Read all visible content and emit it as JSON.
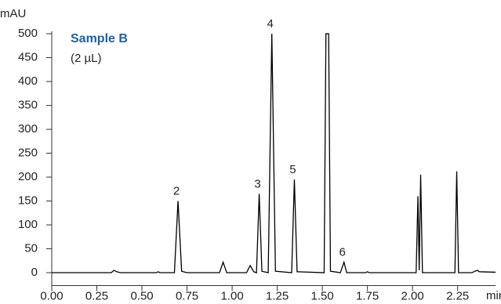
{
  "chart_data": {
    "type": "line",
    "title": "Sample B",
    "subtitle": "(2 µL)",
    "x_label": "min",
    "y_label": "mAU",
    "x": [
      0,
      0.33,
      0.345,
      0.36,
      0.38,
      0.58,
      0.59,
      0.6,
      0.68,
      0.7,
      0.72,
      0.75,
      0.93,
      0.95,
      0.97,
      1.08,
      1.1,
      1.12,
      1.135,
      1.15,
      1.165,
      1.2,
      1.22,
      1.24,
      1.33,
      1.345,
      1.36,
      1.51,
      1.52,
      1.535,
      1.545,
      1.6,
      1.62,
      1.635,
      1.74,
      1.75,
      1.76,
      2.02,
      2.03,
      2.037,
      2.045,
      2.055,
      2.235,
      2.245,
      2.255,
      2.33,
      2.345,
      2.36,
      2.37,
      2.46
    ],
    "values": [
      0,
      0,
      5,
      2,
      0,
      0,
      2,
      0,
      0,
      150,
      3,
      0,
      0,
      22,
      0,
      0,
      15,
      2,
      0,
      165,
      3,
      0,
      500,
      3,
      0,
      195,
      2,
      0,
      500,
      500,
      3,
      0,
      22,
      0,
      0,
      2,
      0,
      0,
      160,
      5,
      205,
      0,
      0,
      212,
      0,
      0,
      3,
      5,
      2,
      1
    ],
    "color": "#000000",
    "annotations": [
      {
        "text": "2",
        "x": 0.7,
        "y": 150
      },
      {
        "text": "3",
        "x": 1.15,
        "y": 165
      },
      {
        "text": "4",
        "x": 1.22,
        "y": 500
      },
      {
        "text": "5",
        "x": 1.345,
        "y": 195
      },
      {
        "text": "6",
        "x": 1.62,
        "y": 22
      }
    ],
    "xlim": [
      0,
      2.46
    ],
    "ylim": [
      -27,
      505
    ],
    "xticks": [
      {
        "value": 0,
        "label": "0.00"
      },
      {
        "value": 0.25,
        "label": "0.25"
      },
      {
        "value": 0.5,
        "label": "0.50"
      },
      {
        "value": 0.75,
        "label": "0.75"
      },
      {
        "value": 1,
        "label": "1.00"
      },
      {
        "value": 1.25,
        "label": "1.25"
      },
      {
        "value": 1.5,
        "label": "1.50"
      },
      {
        "value": 1.75,
        "label": "1.75"
      },
      {
        "value": 2,
        "label": "2.00"
      },
      {
        "value": 2.25,
        "label": "2.25"
      }
    ],
    "yticks": [
      0,
      50,
      100,
      150,
      200,
      250,
      300,
      350,
      400,
      450,
      500
    ]
  }
}
